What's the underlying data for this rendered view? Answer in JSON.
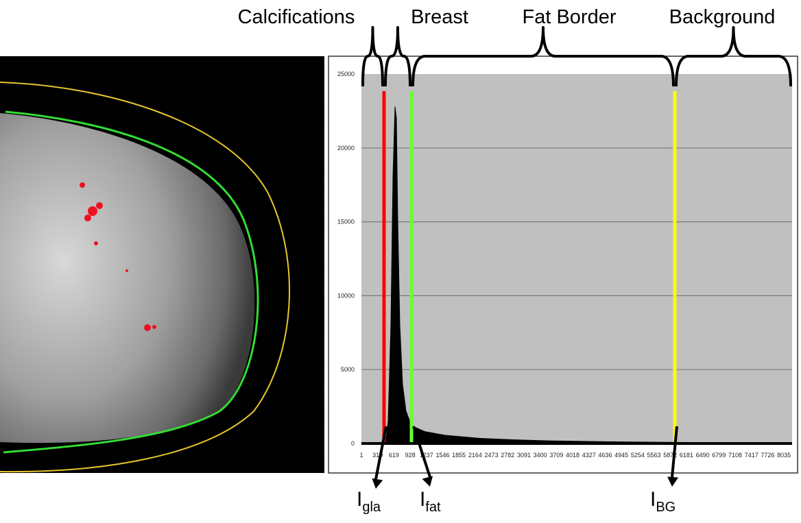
{
  "chart_data": {
    "type": "area",
    "regions": [
      "Calcifications",
      "Breast",
      "Fat Border",
      "Background"
    ],
    "x": [
      457,
      510,
      562,
      601,
      640,
      666,
      692,
      731,
      783,
      849,
      953,
      1214,
      1605,
      2257,
      2909,
      3561,
      4865,
      6169,
      7473,
      8190
    ],
    "values": [
      0,
      1500,
      8000,
      18000,
      22800,
      22000,
      15000,
      8000,
      4000,
      2200,
      1200,
      800,
      550,
      350,
      250,
      180,
      110,
      70,
      40,
      30
    ],
    "color": "#000000",
    "background": "#c0c0c0",
    "xlim": [
      1,
      8190
    ],
    "ylim": [
      0,
      25000
    ],
    "xticks": [
      1,
      310,
      619,
      928,
      1237,
      1546,
      1855,
      2164,
      2473,
      2782,
      3091,
      3400,
      3709,
      4018,
      4327,
      4636,
      4945,
      5254,
      5563,
      5872,
      6181,
      6490,
      6799,
      7108,
      7417,
      7726,
      8035
    ],
    "yticks": [
      0,
      5000,
      10000,
      15000,
      20000,
      25000
    ],
    "grid": true,
    "thresholds": [
      {
        "value": 431,
        "color": "#ff0000",
        "label": {
          "main": "I",
          "sub": "gla"
        }
      },
      {
        "value": 953,
        "color": "#66ff33",
        "label": {
          "main": "I",
          "sub": "fat"
        }
      },
      {
        "value": 5960,
        "color": "#ffff00",
        "label": {
          "main": "I",
          "sub": "BG"
        }
      }
    ]
  }
}
